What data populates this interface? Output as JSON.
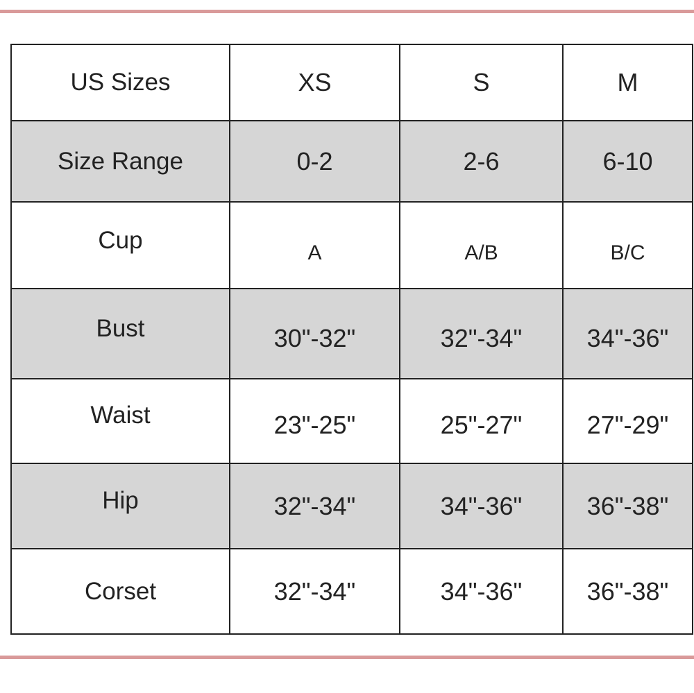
{
  "table": {
    "header": [
      "US Sizes",
      "XS",
      "S",
      "M"
    ],
    "rows": [
      {
        "label": "Size Range",
        "values": [
          "0-2",
          "2-6",
          "6-10"
        ]
      },
      {
        "label": "Cup",
        "values": [
          "A",
          "A/B",
          "B/C"
        ]
      },
      {
        "label": "Bust",
        "values": [
          "30\"-32\"",
          "32\"-34\"",
          "34\"-36\""
        ]
      },
      {
        "label": "Waist",
        "values": [
          "23\"-25\"",
          "25\"-27\"",
          "27\"-29\""
        ]
      },
      {
        "label": "Hip",
        "values": [
          "32\"-34\"",
          "34\"-36\"",
          "36\"-38\""
        ]
      },
      {
        "label": "Corset",
        "values": [
          "32\"-34\"",
          "34\"-36\"",
          "36\"-38\""
        ]
      }
    ]
  },
  "colors": {
    "accent_line": "#d99a9a",
    "shaded_row": "#d6d6d6"
  }
}
